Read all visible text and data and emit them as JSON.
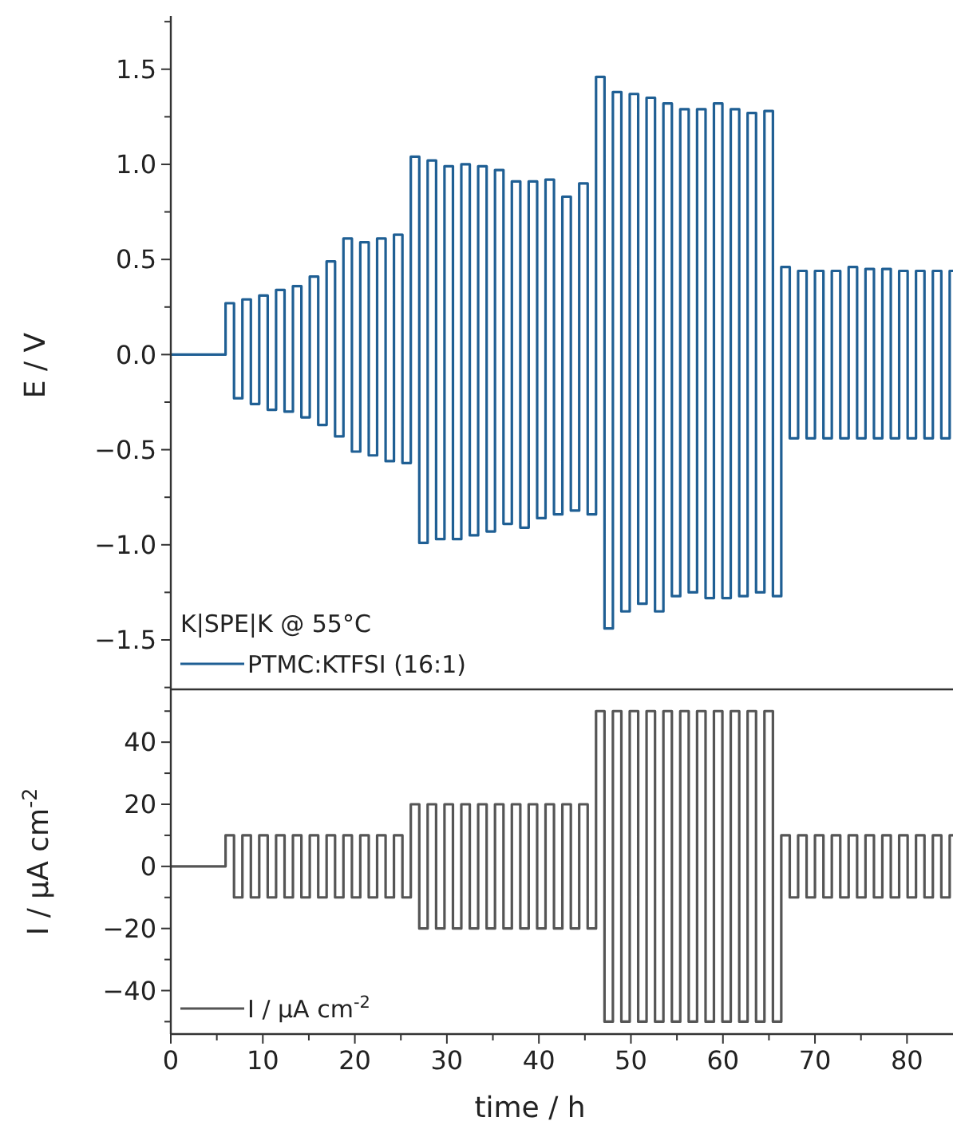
{
  "chart_data": [
    {
      "type": "step",
      "ylabel": "E / V",
      "legend_title": "K|SPE|K @ 55°C",
      "legend": "bottom left",
      "grid": false,
      "tick_labels": "y",
      "xlim": [
        0,
        85
      ],
      "ylim": [
        -1.76,
        1.78
      ],
      "yticks": [
        {
          "value": -1.75,
          "label": null
        },
        -1.5,
        {
          "value": -1.25,
          "label": null
        },
        {
          "value": -1,
          "label": "−1.0"
        },
        {
          "value": -0.75,
          "label": null
        },
        -0.5,
        {
          "value": -0.25,
          "label": null
        },
        {
          "value": 0,
          "label": "0.0"
        },
        {
          "value": 0.25,
          "label": null
        },
        0.5,
        {
          "value": 0.75,
          "label": null
        },
        {
          "value": 1,
          "label": "1.0"
        },
        {
          "value": 1.25,
          "label": null
        },
        1.5,
        {
          "value": 1.75,
          "label": null
        }
      ],
      "series": [
        {
          "name": "PTMC:KTFSI (16:1)",
          "color": "#1f5f94",
          "x": [
            0,
            5.95,
            6.87,
            7.78,
            8.7,
            9.61,
            10.53,
            11.44,
            12.36,
            13.27,
            14.19,
            15.1,
            16.02,
            16.93,
            17.85,
            18.76,
            19.68,
            20.59,
            21.51,
            22.42,
            23.34,
            24.25,
            25.17,
            26.08,
            27.0,
            27.91,
            28.83,
            29.74,
            30.66,
            31.57,
            32.49,
            33.4,
            34.32,
            35.23,
            36.15,
            37.06,
            37.98,
            38.89,
            39.81,
            40.72,
            41.64,
            42.55,
            43.47,
            44.38,
            45.3,
            46.21,
            47.13,
            48.04,
            48.96,
            49.87,
            50.79,
            51.7,
            52.62,
            53.53,
            54.45,
            55.36,
            56.28,
            57.19,
            58.11,
            59.02,
            59.94,
            60.85,
            61.77,
            62.68,
            63.6,
            64.51,
            65.43,
            66.34,
            67.26,
            68.17,
            69.09,
            70.0,
            70.92,
            71.83,
            72.75,
            73.66,
            74.58,
            75.49,
            76.41,
            77.32,
            78.24,
            79.15,
            80.07,
            80.98,
            81.9,
            82.81,
            83.73,
            84.64,
            85
          ],
          "values": [
            0,
            0.27,
            -0.23,
            0.29,
            -0.26,
            0.31,
            -0.29,
            0.34,
            -0.3,
            0.36,
            -0.33,
            0.41,
            -0.37,
            0.49,
            -0.43,
            0.61,
            -0.51,
            0.59,
            -0.53,
            0.61,
            -0.56,
            0.63,
            -0.57,
            1.04,
            -0.99,
            1.02,
            -0.97,
            0.99,
            -0.97,
            1.0,
            -0.95,
            0.99,
            -0.93,
            0.97,
            -0.89,
            0.91,
            -0.91,
            0.91,
            -0.86,
            0.92,
            -0.84,
            0.83,
            -0.82,
            0.9,
            -0.84,
            1.46,
            -1.44,
            1.38,
            -1.35,
            1.37,
            -1.31,
            1.35,
            -1.35,
            1.32,
            -1.27,
            1.29,
            -1.25,
            1.29,
            -1.28,
            1.32,
            -1.28,
            1.29,
            -1.27,
            1.27,
            -1.25,
            1.28,
            -1.27,
            0.46,
            -0.44,
            0.44,
            -0.44,
            0.44,
            -0.44,
            0.44,
            -0.44,
            0.46,
            -0.44,
            0.45,
            -0.44,
            0.45,
            -0.44,
            0.44,
            -0.44,
            0.44,
            -0.44,
            0.44,
            -0.44,
            0.44,
            0.44
          ]
        }
      ]
    },
    {
      "type": "step",
      "xlabel": "time / h",
      "ylabel": "I / µA cm$^{-2}$",
      "legend": "bottom left",
      "grid": false,
      "xlim": [
        0,
        85
      ],
      "ylim": [
        -54,
        57
      ],
      "xticks": [
        0,
        {
          "value": 5,
          "label": null
        },
        10,
        {
          "value": 15,
          "label": null
        },
        20,
        {
          "value": 25,
          "label": null
        },
        30,
        {
          "value": 35,
          "label": null
        },
        40,
        {
          "value": 45,
          "label": null
        },
        50,
        {
          "value": 55,
          "label": null
        },
        60,
        {
          "value": 65,
          "label": null
        },
        70,
        {
          "value": 75,
          "label": null
        },
        80
      ],
      "yticks": [
        {
          "value": -50,
          "label": null
        },
        -40,
        {
          "value": -30,
          "label": null
        },
        -20,
        {
          "value": -10,
          "label": null
        },
        0,
        {
          "value": 10,
          "label": null
        },
        20,
        {
          "value": 30,
          "label": null
        },
        40,
        {
          "value": 50,
          "label": null
        }
      ],
      "series": [
        {
          "name": "I / µA cm$^{-2}$",
          "color": "#555555",
          "x": [
            0,
            5.95,
            6.87,
            7.78,
            8.7,
            9.61,
            10.53,
            11.44,
            12.36,
            13.27,
            14.19,
            15.1,
            16.02,
            16.93,
            17.85,
            18.76,
            19.68,
            20.59,
            21.51,
            22.42,
            23.34,
            24.25,
            25.17,
            26.08,
            27.0,
            27.91,
            28.83,
            29.74,
            30.66,
            31.57,
            32.49,
            33.4,
            34.32,
            35.23,
            36.15,
            37.06,
            37.98,
            38.89,
            39.81,
            40.72,
            41.64,
            42.55,
            43.47,
            44.38,
            45.3,
            46.21,
            47.13,
            48.04,
            48.96,
            49.87,
            50.79,
            51.7,
            52.62,
            53.53,
            54.45,
            55.36,
            56.28,
            57.19,
            58.11,
            59.02,
            59.94,
            60.85,
            61.77,
            62.68,
            63.6,
            64.51,
            65.43,
            66.34,
            67.26,
            68.17,
            69.09,
            70.0,
            70.92,
            71.83,
            72.75,
            73.66,
            74.58,
            75.49,
            76.41,
            77.32,
            78.24,
            79.15,
            80.07,
            80.98,
            81.9,
            82.81,
            83.73,
            84.64,
            85
          ],
          "values": [
            0,
            10,
            -10,
            10,
            -10,
            10,
            -10,
            10,
            -10,
            10,
            -10,
            10,
            -10,
            10,
            -10,
            10,
            -10,
            10,
            -10,
            10,
            -10,
            10,
            -10,
            20,
            -20,
            20,
            -20,
            20,
            -20,
            20,
            -20,
            20,
            -20,
            20,
            -20,
            20,
            -20,
            20,
            -20,
            20,
            -20,
            20,
            -20,
            20,
            -20,
            50,
            -50,
            50,
            -50,
            50,
            -50,
            50,
            -50,
            50,
            -50,
            50,
            -50,
            50,
            -50,
            50,
            -50,
            50,
            -50,
            50,
            -50,
            50,
            -50,
            10,
            -10,
            10,
            -10,
            10,
            -10,
            10,
            -10,
            10,
            -10,
            10,
            -10,
            10,
            -10,
            10,
            -10,
            10,
            -10,
            10,
            -10,
            10,
            10
          ]
        }
      ]
    }
  ]
}
